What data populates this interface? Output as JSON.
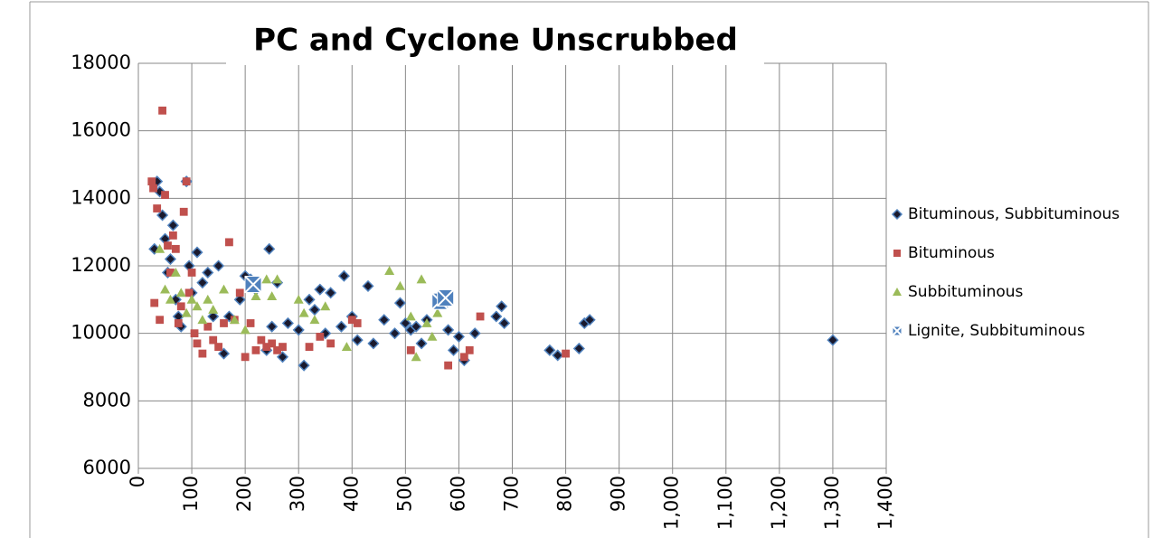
{
  "chart_data": {
    "type": "scatter",
    "title": "PC and Cyclone Unscrubbed",
    "xlim": [
      0,
      1400
    ],
    "xticks": [
      0,
      100,
      200,
      300,
      400,
      500,
      600,
      700,
      800,
      900,
      {
        "value": 1000,
        "label": "1,000"
      },
      {
        "value": 1100,
        "label": "1,100"
      },
      {
        "value": 1200,
        "label": "1,200"
      },
      {
        "value": 1300,
        "label": "1,300"
      },
      {
        "value": 1400,
        "label": "1,400"
      }
    ],
    "ylim": [
      6000,
      18000
    ],
    "yticks": [
      6000,
      8000,
      10000,
      12000,
      14000,
      16000,
      18000
    ],
    "grid": true,
    "legend": "right",
    "series": [
      {
        "name": "Bituminous, Subbituminous",
        "color": "#1a1a2e",
        "marker": "diamond",
        "x": [
          30,
          35,
          40,
          45,
          50,
          55,
          60,
          65,
          70,
          75,
          80,
          90,
          95,
          100,
          110,
          120,
          130,
          140,
          150,
          160,
          170,
          190,
          200,
          210,
          220,
          240,
          245,
          250,
          260,
          270,
          280,
          300,
          310,
          320,
          330,
          340,
          350,
          360,
          380,
          385,
          400,
          410,
          430,
          440,
          460,
          480,
          490,
          500,
          510,
          520,
          530,
          540,
          560,
          580,
          590,
          600,
          610,
          630,
          670,
          680,
          685,
          770,
          785,
          825,
          835,
          845,
          1300
        ],
        "values": [
          12500,
          14500,
          14200,
          13500,
          12800,
          11800,
          12200,
          13200,
          11000,
          10500,
          10200,
          14500,
          12000,
          11200,
          12400,
          11500,
          11800,
          10500,
          12000,
          9400,
          10500,
          11000,
          11700,
          11600,
          11300,
          9500,
          12500,
          10200,
          11500,
          9300,
          10300,
          10100,
          9050,
          11000,
          10700,
          11300,
          10000,
          11200,
          10200,
          11700,
          10500,
          9800,
          11400,
          9700,
          10400,
          10000,
          10900,
          10300,
          10100,
          10200,
          9700,
          10400,
          11000,
          10100,
          9500,
          9900,
          9200,
          10000,
          10500,
          10800,
          10300,
          9500,
          9350,
          9550,
          10300,
          10400,
          9800
        ]
      },
      {
        "name": "Bituminous",
        "color": "#c0504d",
        "marker": "square",
        "x": [
          25,
          28,
          30,
          35,
          40,
          45,
          50,
          55,
          60,
          65,
          70,
          75,
          80,
          85,
          90,
          95,
          100,
          105,
          110,
          120,
          130,
          140,
          150,
          160,
          170,
          180,
          190,
          200,
          210,
          220,
          230,
          240,
          250,
          260,
          270,
          320,
          340,
          360,
          400,
          410,
          510,
          580,
          610,
          620,
          640,
          800
        ],
        "values": [
          14500,
          14300,
          10900,
          13700,
          10400,
          16600,
          14100,
          12600,
          11800,
          12900,
          12500,
          10300,
          10800,
          13600,
          14500,
          11200,
          11800,
          10000,
          9700,
          9400,
          10200,
          9800,
          9600,
          10300,
          12700,
          10400,
          11200,
          9300,
          10300,
          9500,
          9800,
          9600,
          9700,
          9500,
          9600,
          9600,
          9900,
          9700,
          10400,
          10300,
          9500,
          9050,
          9300,
          9500,
          10500,
          9400
        ]
      },
      {
        "name": "Subbituminous",
        "color": "#9bbb59",
        "marker": "triangle",
        "x": [
          40,
          50,
          60,
          70,
          80,
          90,
          100,
          110,
          120,
          130,
          140,
          160,
          180,
          200,
          220,
          240,
          250,
          260,
          300,
          310,
          330,
          350,
          390,
          470,
          490,
          510,
          520,
          530,
          540,
          550,
          560
        ],
        "values": [
          12500,
          11300,
          11000,
          11800,
          11200,
          10600,
          11000,
          10800,
          10400,
          11000,
          10700,
          11300,
          10400,
          10100,
          11100,
          11600,
          11100,
          11600,
          11000,
          10600,
          10400,
          10800,
          9600,
          11850,
          11400,
          10500,
          9300,
          11600,
          10300,
          9900,
          10600
        ]
      },
      {
        "name": "Lignite, Subbituminous",
        "color": "#4f81bd",
        "marker": "xsquare",
        "x": [
          215,
          565,
          575
        ],
        "values": [
          11450,
          10950,
          11050
        ]
      }
    ]
  }
}
